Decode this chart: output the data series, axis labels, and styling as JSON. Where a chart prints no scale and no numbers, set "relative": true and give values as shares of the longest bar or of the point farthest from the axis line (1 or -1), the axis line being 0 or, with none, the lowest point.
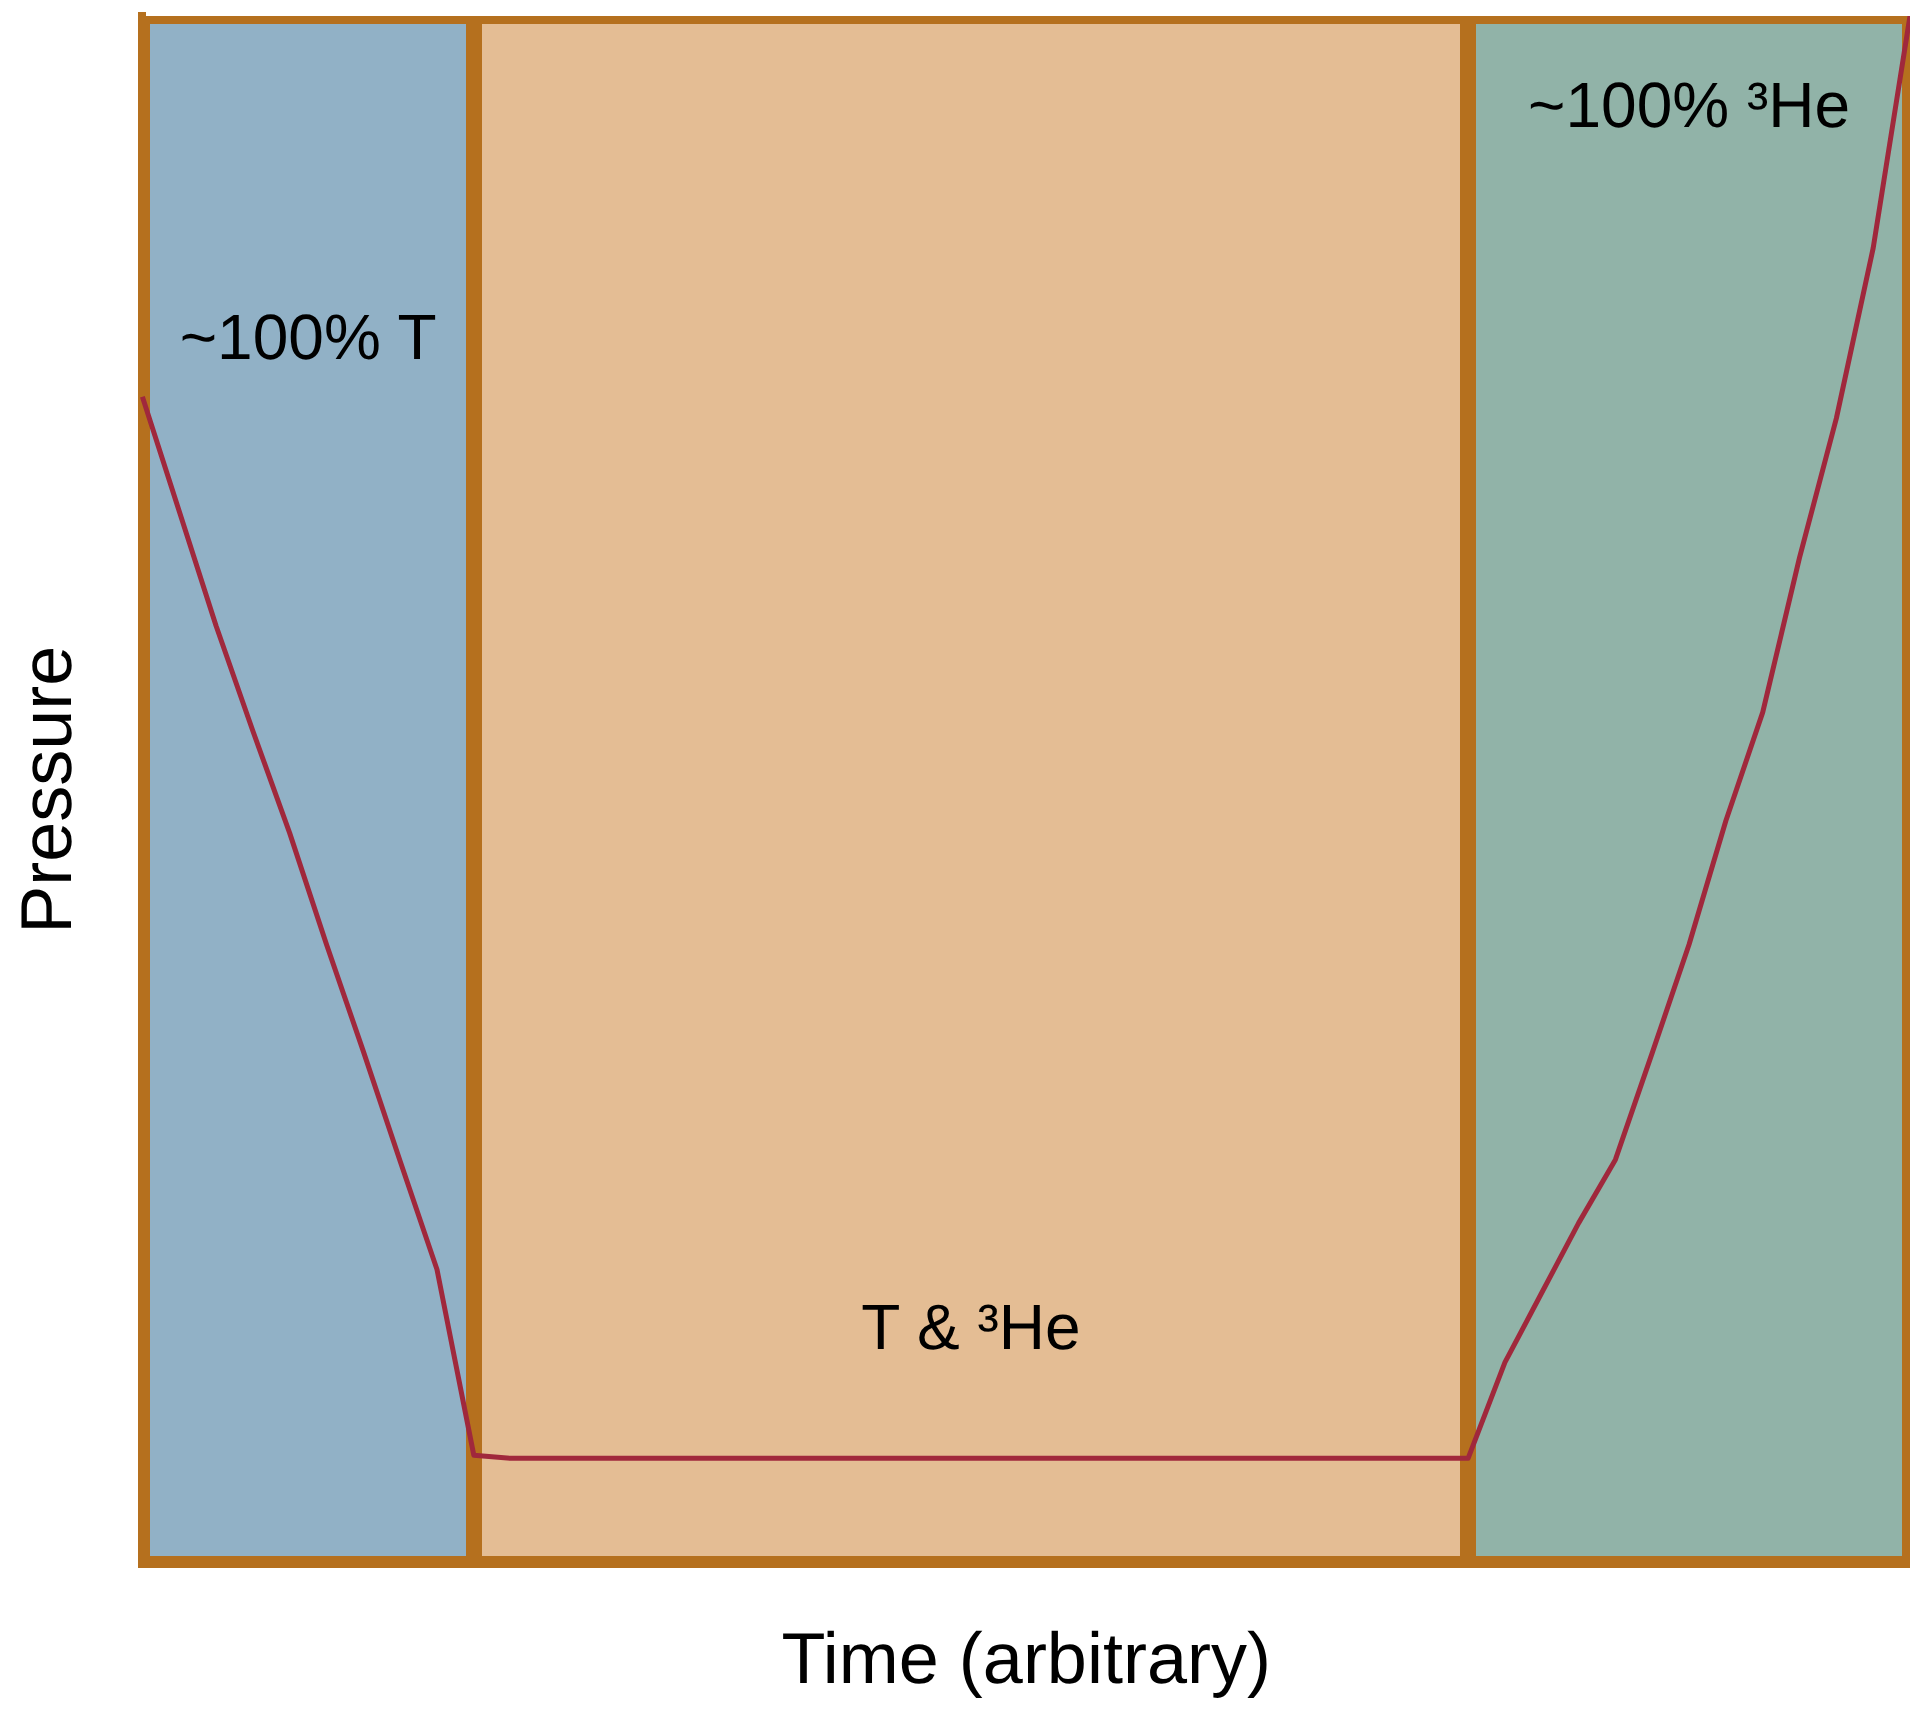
{
  "chart_data": {
    "type": "line",
    "relative": true,
    "xlabel": "Time (arbitrary)",
    "ylabel": "Pressure",
    "legend": false,
    "grid": false,
    "marker": "none",
    "categories": [
      null,
      null,
      null,
      null,
      null,
      null,
      null,
      null,
      null,
      null,
      null,
      null,
      null,
      null,
      null,
      null,
      null,
      null,
      null,
      null,
      null,
      null,
      null,
      null,
      null,
      null,
      null,
      null,
      null,
      null,
      null,
      null,
      null,
      null,
      null,
      null,
      null,
      null,
      null,
      null,
      null,
      null,
      null,
      null,
      null,
      null,
      null,
      null,
      null
    ],
    "series": [
      {
        "color": "#a0283c",
        "values": [
          0.754,
          0.68,
          0.606,
          0.538,
          0.472,
          0.4,
          0.331,
          0.26,
          0.19,
          0.07,
          0.068,
          0.068,
          0.068,
          0.068,
          0.068,
          0.068,
          0.068,
          0.068,
          0.068,
          0.068,
          0.068,
          0.068,
          0.068,
          0.068,
          0.068,
          0.068,
          0.068,
          0.068,
          0.068,
          0.068,
          0.068,
          0.068,
          0.068,
          0.068,
          0.068,
          0.068,
          0.068,
          0.13,
          0.175,
          0.22,
          0.261,
          0.33,
          0.4,
          0.48,
          0.55,
          0.65,
          0.74,
          0.85,
          1.0
        ]
      }
    ],
    "annotations": [
      "~100% T",
      "T & ³He",
      "~100% ³He"
    ]
  }
}
